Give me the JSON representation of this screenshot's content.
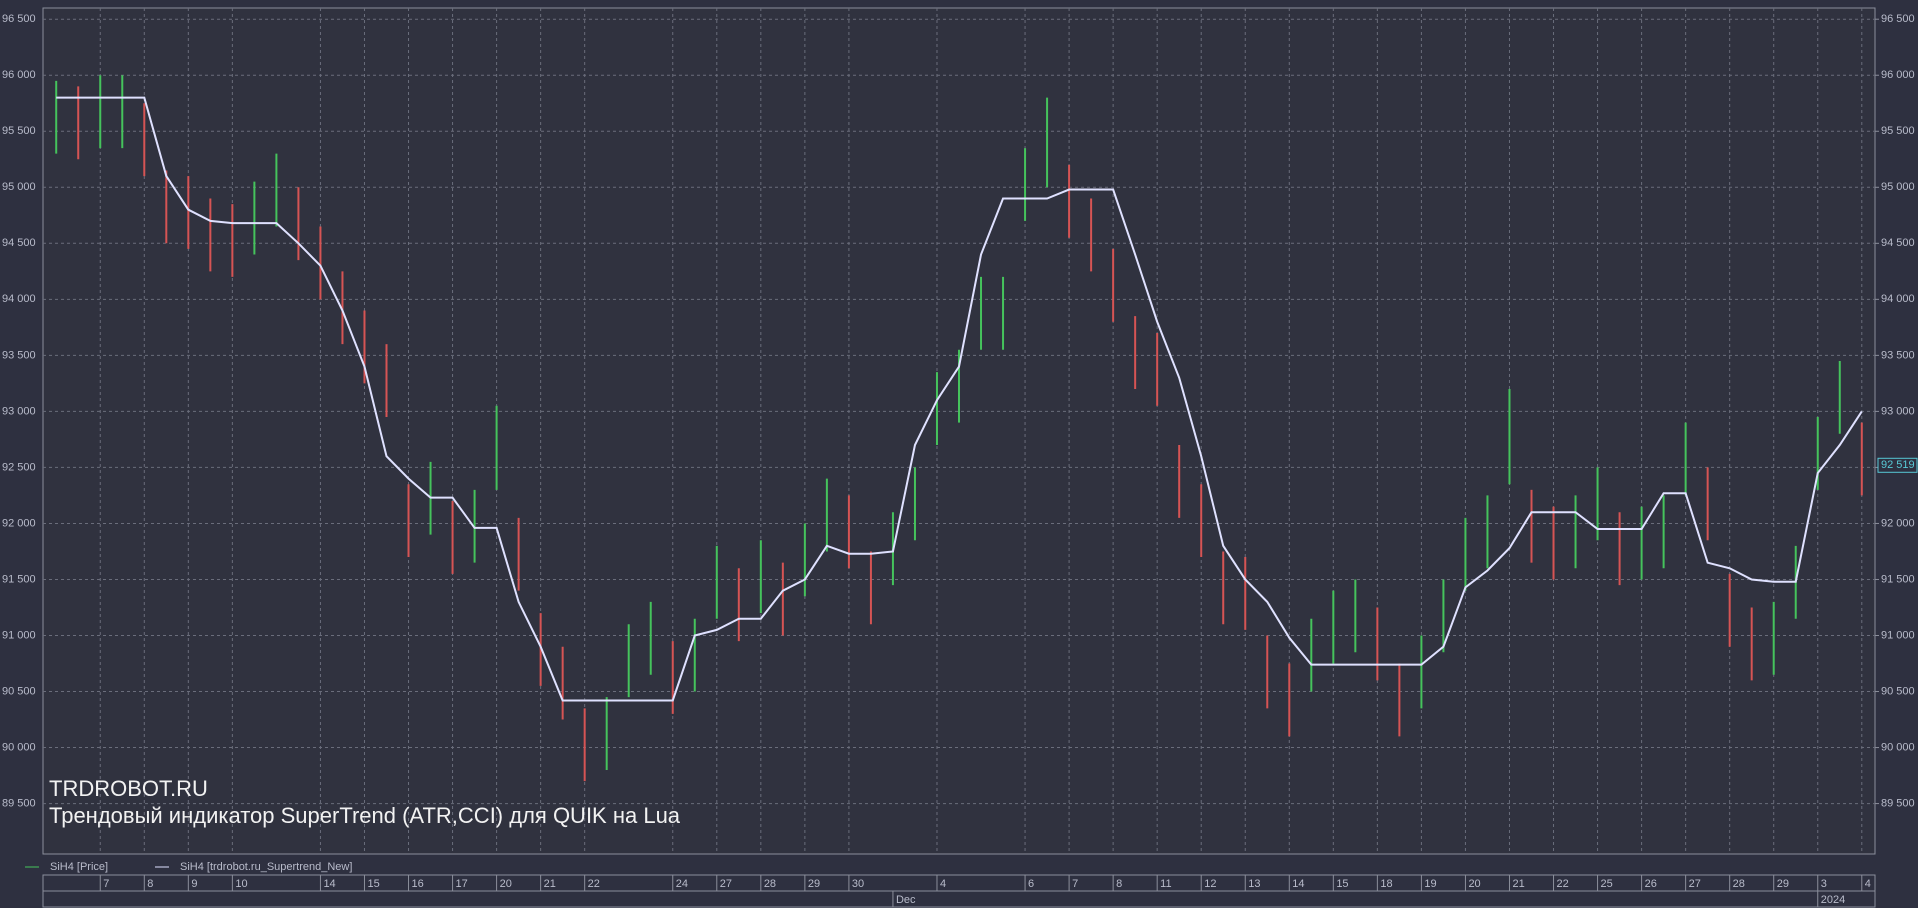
{
  "chart_data": {
    "type": "ohlc",
    "watermark_title": "TRDROBOT.RU",
    "watermark_subtitle": "Трендовый индикатор SuperTrend (ATR,CCI) для QUIK на Lua",
    "grid": true,
    "xlim": [
      -0.3,
      41.3
    ],
    "ylim": [
      89050,
      96600
    ],
    "yticks": [
      {
        "value": 89500,
        "label": "89 500"
      },
      {
        "value": 90000,
        "label": "90 000"
      },
      {
        "value": 90500,
        "label": "90 500"
      },
      {
        "value": 91000,
        "label": "91 000"
      },
      {
        "value": 91500,
        "label": "91 500"
      },
      {
        "value": 92000,
        "label": "92 000"
      },
      {
        "value": 92500,
        "label": "92 500"
      },
      {
        "value": 93000,
        "label": "93 000"
      },
      {
        "value": 93500,
        "label": "93 500"
      },
      {
        "value": 94000,
        "label": "94 000"
      },
      {
        "value": 94500,
        "label": "94 500"
      },
      {
        "value": 95000,
        "label": "95 000"
      },
      {
        "value": 95500,
        "label": "95 500"
      },
      {
        "value": 96000,
        "label": "96 000"
      },
      {
        "value": 96500,
        "label": "96 500"
      }
    ],
    "xticks": [
      {
        "value": 1,
        "label": "7"
      },
      {
        "value": 2,
        "label": "8"
      },
      {
        "value": 3,
        "label": "9"
      },
      {
        "value": 4,
        "label": "10"
      },
      {
        "value": 6,
        "label": "14"
      },
      {
        "value": 7,
        "label": "15"
      },
      {
        "value": 8,
        "label": "16"
      },
      {
        "value": 9,
        "label": "17"
      },
      {
        "value": 10,
        "label": "20"
      },
      {
        "value": 11,
        "label": "21"
      },
      {
        "value": 12,
        "label": "22"
      },
      {
        "value": 14,
        "label": "24"
      },
      {
        "value": 15,
        "label": "27"
      },
      {
        "value": 16,
        "label": "28"
      },
      {
        "value": 17,
        "label": "29"
      },
      {
        "value": 18,
        "label": "30"
      },
      {
        "value": 20,
        "label": "4"
      },
      {
        "value": 22,
        "label": "6"
      },
      {
        "value": 23,
        "label": "7"
      },
      {
        "value": 24,
        "label": "8"
      },
      {
        "value": 25,
        "label": "11"
      },
      {
        "value": 26,
        "label": "12"
      },
      {
        "value": 27,
        "label": "13"
      },
      {
        "value": 28,
        "label": "14"
      },
      {
        "value": 29,
        "label": "15"
      },
      {
        "value": 30,
        "label": "18"
      },
      {
        "value": 31,
        "label": "19"
      },
      {
        "value": 32,
        "label": "20"
      },
      {
        "value": 33,
        "label": "21"
      },
      {
        "value": 34,
        "label": "22"
      },
      {
        "value": 35,
        "label": "25"
      },
      {
        "value": 36,
        "label": "26"
      },
      {
        "value": 37,
        "label": "27"
      },
      {
        "value": 38,
        "label": "28"
      },
      {
        "value": 39,
        "label": "29"
      },
      {
        "value": 40,
        "label": "3"
      },
      {
        "value": 41,
        "label": "4"
      }
    ],
    "month_labels": [
      {
        "value": 19,
        "label": "Dec"
      },
      {
        "value": 40,
        "label": "2024"
      }
    ],
    "last_price": {
      "value": 92519,
      "label": "92 519"
    },
    "x": [
      0,
      0.5,
      1,
      1.5,
      2,
      2.5,
      3,
      3.5,
      4,
      4.5,
      5,
      5.5,
      6,
      6.5,
      7,
      7.5,
      8,
      8.5,
      9,
      9.5,
      10,
      10.5,
      11,
      11.5,
      12,
      12.5,
      13,
      13.5,
      14,
      14.5,
      15,
      15.5,
      16,
      16.5,
      17,
      17.5,
      18,
      18.5,
      19,
      19.5,
      20,
      20.5,
      21,
      21.5,
      22,
      22.5,
      23,
      23.5,
      24,
      24.5,
      25,
      25.5,
      26,
      26.5,
      27,
      27.5,
      28,
      28.5,
      29,
      29.5,
      30,
      30.5,
      31,
      31.5,
      32,
      32.5,
      33,
      33.5,
      34,
      34.5,
      35,
      35.5,
      36,
      36.5,
      37,
      37.5,
      38,
      38.5,
      39,
      39.5,
      40,
      40.5,
      41
    ],
    "series": [
      {
        "name": "SiH4 [Price]",
        "color": "#45c35c",
        "down_color": "#d65454",
        "high": [
          95950,
          95900,
          96000,
          96000,
          95750,
          95150,
          95100,
          94900,
          94850,
          95050,
          95300,
          95000,
          94650,
          94250,
          93900,
          93600,
          92350,
          92550,
          92200,
          92300,
          93050,
          92050,
          91200,
          90900,
          90350,
          90450,
          91100,
          91300,
          90950,
          91150,
          91800,
          91600,
          91850,
          91650,
          92000,
          92400,
          92250,
          91750,
          92100,
          92500,
          93350,
          93550,
          94200,
          94200,
          95350,
          95800,
          95200,
          94900,
          94450,
          93850,
          93700,
          92700,
          92350,
          91750,
          91700,
          91000,
          90750,
          91150,
          91400,
          91500,
          91250,
          90750,
          91000,
          91500,
          92050,
          92250,
          93200,
          92300,
          92150,
          92250,
          92500,
          92100,
          92150,
          92250,
          92900,
          92500,
          91550,
          91250,
          91300,
          91800,
          92950,
          93450,
          92900
        ],
        "low": [
          95300,
          95250,
          95350,
          95350,
          95100,
          94500,
          94450,
          94250,
          94200,
          94400,
          94650,
          94350,
          94000,
          93600,
          93250,
          92950,
          91700,
          91900,
          91550,
          91650,
          92300,
          91400,
          90550,
          90250,
          89700,
          89800,
          90450,
          90650,
          90300,
          90500,
          91150,
          90950,
          91200,
          91000,
          91350,
          91750,
          91600,
          91100,
          91450,
          91850,
          92700,
          92900,
          93550,
          93550,
          94700,
          95000,
          94550,
          94250,
          93800,
          93200,
          93050,
          92050,
          91700,
          91100,
          91050,
          90350,
          90100,
          90500,
          90750,
          90850,
          90600,
          90100,
          90350,
          90850,
          91400,
          91600,
          92350,
          91650,
          91500,
          91600,
          91850,
          91450,
          91500,
          91600,
          92250,
          91850,
          90900,
          90600,
          90650,
          91150,
          92300,
          92800,
          92250
        ]
      },
      {
        "name": "SiH4 [trdrobot.ru_Supertrend_New]",
        "color": "#dfe1ff",
        "values": [
          95800,
          95800,
          95800,
          95800,
          95800,
          95100,
          94800,
          94700,
          94680,
          94680,
          94680,
          94500,
          94300,
          93900,
          93400,
          92600,
          92400,
          92230,
          92230,
          91960,
          91960,
          91300,
          90900,
          90420,
          90420,
          90420,
          90420,
          90420,
          90420,
          91000,
          91050,
          91150,
          91150,
          91400,
          91500,
          91800,
          91730,
          91730,
          91750,
          92700,
          93100,
          93400,
          94400,
          94900,
          94900,
          94900,
          94980,
          94980,
          94980,
          94400,
          93800,
          93300,
          92600,
          91800,
          91500,
          91300,
          90980,
          90740,
          90740,
          90740,
          90740,
          90740,
          90740,
          90900,
          91430,
          91580,
          91780,
          92100,
          92100,
          92100,
          91950,
          91950,
          91950,
          92270,
          92270,
          91650,
          91600,
          91500,
          91480,
          91480,
          92450,
          92700,
          93000
        ]
      }
    ]
  }
}
